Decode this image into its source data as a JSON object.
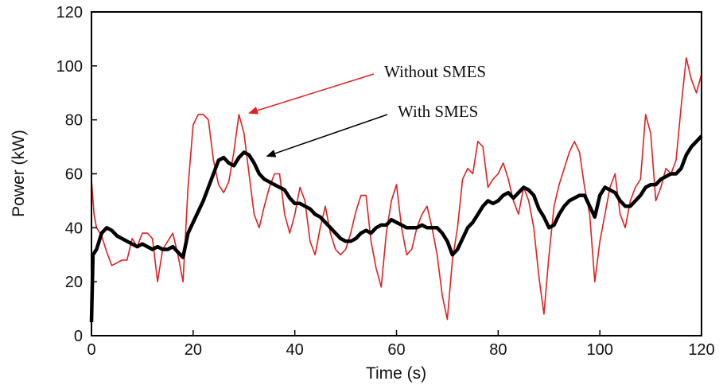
{
  "chart_data": {
    "type": "line",
    "xlabel": "Time (s)",
    "ylabel": "Power (kW)",
    "xlim": [
      0,
      120
    ],
    "ylim": [
      0,
      120
    ],
    "x_ticks": [
      0,
      20,
      40,
      60,
      80,
      100,
      120
    ],
    "y_ticks": [
      0,
      20,
      40,
      60,
      80,
      100,
      120
    ],
    "grid": false,
    "colors": {
      "without": "#e02020",
      "with": "#000000"
    },
    "series": [
      {
        "name": "Without SMES",
        "x": [
          0,
          0.5,
          1,
          2,
          3,
          4,
          5,
          6,
          7,
          8,
          9,
          10,
          11,
          12,
          13,
          14,
          15,
          16,
          17,
          18,
          19,
          20,
          21,
          22,
          23,
          24,
          25,
          26,
          27,
          28,
          29,
          30,
          31,
          32,
          33,
          34,
          35,
          36,
          37,
          38,
          39,
          40,
          41,
          42,
          43,
          44,
          45,
          46,
          47,
          48,
          49,
          50,
          51,
          52,
          53,
          54,
          55,
          56,
          57,
          58,
          59,
          60,
          61,
          62,
          63,
          64,
          65,
          66,
          67,
          68,
          69,
          70,
          71,
          72,
          73,
          74,
          75,
          76,
          77,
          78,
          79,
          80,
          81,
          82,
          83,
          84,
          85,
          86,
          87,
          88,
          89,
          90,
          91,
          92,
          93,
          94,
          95,
          96,
          97,
          98,
          99,
          100,
          101,
          102,
          103,
          104,
          105,
          106,
          107,
          108,
          109,
          110,
          111,
          112,
          113,
          114,
          115,
          116,
          117,
          118,
          119,
          120
        ],
        "y": [
          58,
          45,
          40,
          37,
          31,
          26,
          27,
          28,
          28,
          36,
          33,
          38,
          38,
          36,
          20,
          32,
          35,
          38,
          30,
          20,
          55,
          78,
          82,
          82,
          80,
          65,
          56,
          53,
          57,
          68,
          82,
          75,
          60,
          45,
          40,
          48,
          55,
          60,
          60,
          45,
          38,
          45,
          55,
          50,
          35,
          30,
          40,
          48,
          38,
          32,
          30,
          32,
          38,
          46,
          52,
          52,
          35,
          25,
          18,
          38,
          50,
          56,
          40,
          30,
          32,
          40,
          45,
          48,
          40,
          30,
          15,
          6,
          28,
          40,
          58,
          62,
          60,
          72,
          70,
          55,
          58,
          60,
          64,
          58,
          50,
          45,
          55,
          50,
          40,
          22,
          8,
          30,
          48,
          56,
          62,
          68,
          72,
          68,
          55,
          45,
          20,
          35,
          45,
          55,
          60,
          45,
          40,
          50,
          55,
          58,
          82,
          75,
          50,
          55,
          62,
          60,
          65,
          85,
          103,
          95,
          90,
          97
        ]
      },
      {
        "name": "With SMES",
        "x": [
          0,
          0.3,
          1,
          2,
          3,
          4,
          5,
          6,
          7,
          8,
          9,
          10,
          11,
          12,
          13,
          14,
          15,
          16,
          17,
          18,
          19,
          20,
          21,
          22,
          23,
          24,
          25,
          26,
          27,
          28,
          29,
          30,
          31,
          32,
          33,
          34,
          35,
          36,
          37,
          38,
          39,
          40,
          41,
          42,
          43,
          44,
          45,
          46,
          47,
          48,
          49,
          50,
          51,
          52,
          53,
          54,
          55,
          56,
          57,
          58,
          59,
          60,
          61,
          62,
          63,
          64,
          65,
          66,
          67,
          68,
          69,
          70,
          71,
          72,
          73,
          74,
          75,
          76,
          77,
          78,
          79,
          80,
          81,
          82,
          83,
          84,
          85,
          86,
          87,
          88,
          89,
          90,
          91,
          92,
          93,
          94,
          95,
          96,
          97,
          98,
          99,
          100,
          101,
          102,
          103,
          104,
          105,
          106,
          107,
          108,
          109,
          110,
          111,
          112,
          113,
          114,
          115,
          116,
          117,
          118,
          119,
          120
        ],
        "y": [
          5,
          30,
          32,
          38,
          40,
          39,
          37,
          36,
          35,
          34,
          33,
          34,
          33,
          32,
          33,
          32,
          32,
          33,
          31,
          29,
          38,
          42,
          46,
          50,
          55,
          60,
          65,
          66,
          64,
          63,
          66,
          68,
          67,
          64,
          60,
          58,
          57,
          56,
          55,
          54,
          51,
          49,
          49,
          48,
          47,
          45,
          44,
          42,
          40,
          38,
          36,
          35,
          35,
          36,
          38,
          39,
          38,
          40,
          41,
          41,
          43,
          42,
          41,
          40,
          40,
          40,
          41,
          40,
          40,
          40,
          38,
          35,
          30,
          32,
          36,
          40,
          42,
          45,
          48,
          50,
          49,
          50,
          52,
          53,
          51,
          53,
          55,
          54,
          52,
          47,
          44,
          40,
          41,
          45,
          48,
          50,
          51,
          52,
          52,
          48,
          44,
          52,
          55,
          54,
          53,
          50,
          48,
          48,
          50,
          52,
          55,
          56,
          56,
          58,
          59,
          60,
          60,
          62,
          67,
          70,
          72,
          74
        ]
      }
    ],
    "annotations": [
      {
        "label": "Without SMES",
        "target_x": 30.5,
        "target_y": 82
      },
      {
        "label": "With SMES",
        "target_x": 34,
        "target_y": 66
      }
    ]
  }
}
